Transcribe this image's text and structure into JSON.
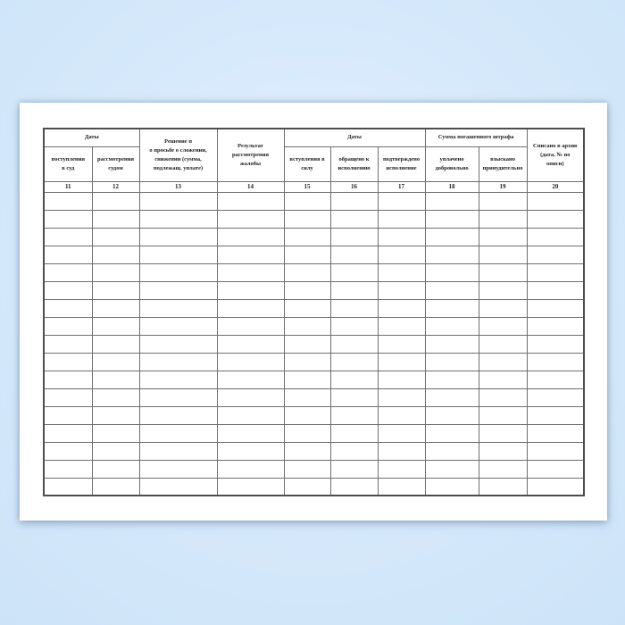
{
  "document": {
    "kind": "blank ledger form page (Russian court fines register, columns 11-20)",
    "paper_color": "#ffffff",
    "background_color": "#d7eafc",
    "grid_color": "#6e6e6e"
  },
  "table": {
    "group_headers": {
      "dates_left": "Даты",
      "decision": "Решение п\nо просьбе о сложении,\nснижении (сумма,\nподлежащ. уплате)",
      "complaint_result": "Результат\nрассмотрения\nжалобы",
      "dates_right": "Даты",
      "fine_sum": "Сумма погашенного штрафа",
      "archive": "Списано в архив\n(дата, № по\nописи)"
    },
    "sub_headers": {
      "receipt_court": "поступления\nв суд",
      "considered_court": "рассмотрения\nсудом",
      "entry_force": "вступления в\nсилу",
      "turned_execution": "обращено к\nисполнению",
      "execution_confirmed": "подтверждено\nисполнение",
      "paid_voluntarily": "уплачено\nдобровольно",
      "collected_forcibly": "взыскано\nпринудительно"
    },
    "column_numbers": [
      "11",
      "12",
      "13",
      "14",
      "15",
      "16",
      "17",
      "18",
      "19",
      "20"
    ],
    "empty_row_count": 17,
    "columns_per_row": 10
  }
}
